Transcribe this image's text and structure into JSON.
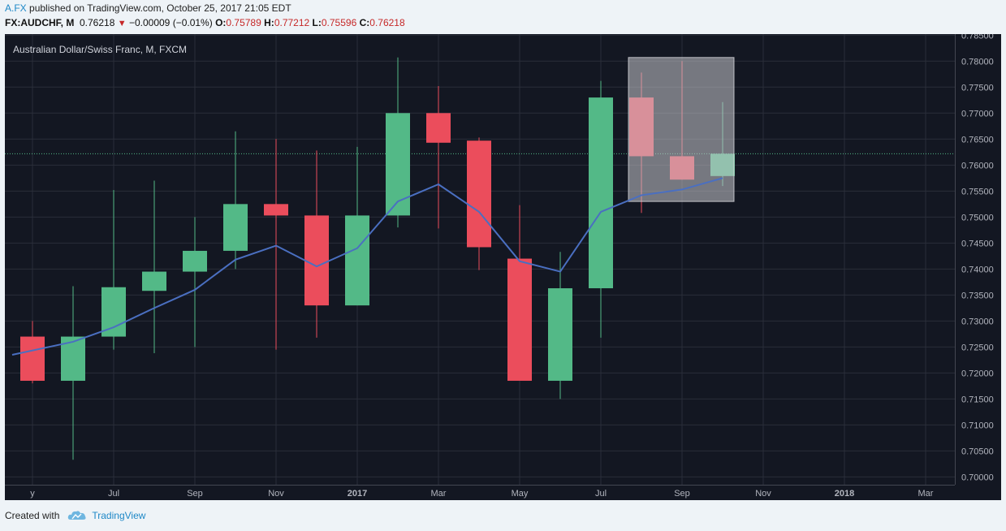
{
  "header": {
    "user": "A.FX",
    "published": "published on TradingView.com, October 25, 2017 21:05 EDT",
    "symbol": "FX:AUDCHF, M",
    "last": "0.76218",
    "change": "−0.00009 (−0.01%)",
    "o_label": "O:",
    "o_value": "0.75789",
    "h_label": "H:",
    "h_value": "0.77212",
    "l_label": "L:",
    "l_value": "0.75596",
    "c_label": "C:",
    "c_value": "0.76218",
    "down_arrow_icon": "triangle-down-icon"
  },
  "footer": {
    "created_with": "Created with",
    "brand": "TradingView",
    "logo_icon": "tradingview-cloud-icon"
  },
  "colors": {
    "background": "#131722",
    "up": "#53b987",
    "down": "#eb4d5c",
    "ma": "#4a6fc1",
    "grid": "#2a2e39",
    "axis_text": "#b2b5be",
    "price_line": "#53b987"
  },
  "chart_data": {
    "type": "candlestick",
    "title": "Australian Dollar/Swiss Franc, M, FXCM",
    "xlabel": "",
    "ylabel": "",
    "ylim": [
      0.6985,
      0.7852
    ],
    "grid": true,
    "current_price": 0.76218,
    "x_labels": [
      {
        "text": "y",
        "t": 0
      },
      {
        "text": "Jul",
        "t": 2
      },
      {
        "text": "Sep",
        "t": 4
      },
      {
        "text": "Nov",
        "t": 6
      },
      {
        "text": "2017",
        "t": 8
      },
      {
        "text": "Mar",
        "t": 10
      },
      {
        "text": "May",
        "t": 12
      },
      {
        "text": "Jul",
        "t": 14
      },
      {
        "text": "Sep",
        "t": 16
      },
      {
        "text": "Nov",
        "t": 18
      },
      {
        "text": "2018",
        "t": 20
      },
      {
        "text": "Mar",
        "t": 22
      }
    ],
    "y_ticks": [
      "0.78500",
      "0.78000",
      "0.77500",
      "0.77000",
      "0.76500",
      "0.76000",
      "0.75500",
      "0.75000",
      "0.74500",
      "0.74000",
      "0.73500",
      "0.73000",
      "0.72500",
      "0.72000",
      "0.71500",
      "0.71000",
      "0.70500",
      "0.70000"
    ],
    "candles": [
      {
        "t": 0,
        "o": 0.727,
        "h": 0.73,
        "l": 0.718,
        "c": 0.7185
      },
      {
        "t": 1,
        "o": 0.7185,
        "h": 0.7367,
        "l": 0.7033,
        "c": 0.727
      },
      {
        "t": 2,
        "o": 0.727,
        "h": 0.7552,
        "l": 0.7245,
        "c": 0.7365
      },
      {
        "t": 3,
        "o": 0.7358,
        "h": 0.757,
        "l": 0.7238,
        "c": 0.7395
      },
      {
        "t": 4,
        "o": 0.7395,
        "h": 0.75,
        "l": 0.725,
        "c": 0.7435
      },
      {
        "t": 5,
        "o": 0.7435,
        "h": 0.7665,
        "l": 0.74,
        "c": 0.7525
      },
      {
        "t": 6,
        "o": 0.7525,
        "h": 0.765,
        "l": 0.7245,
        "c": 0.7503
      },
      {
        "t": 7,
        "o": 0.7503,
        "h": 0.7628,
        "l": 0.7268,
        "c": 0.733
      },
      {
        "t": 8,
        "o": 0.733,
        "h": 0.7635,
        "l": 0.733,
        "c": 0.7503
      },
      {
        "t": 9,
        "o": 0.7503,
        "h": 0.7807,
        "l": 0.748,
        "c": 0.77
      },
      {
        "t": 10,
        "o": 0.77,
        "h": 0.7752,
        "l": 0.7478,
        "c": 0.7643
      },
      {
        "t": 11,
        "o": 0.7647,
        "h": 0.7653,
        "l": 0.7398,
        "c": 0.7442
      },
      {
        "t": 12,
        "o": 0.742,
        "h": 0.7523,
        "l": 0.7185,
        "c": 0.7185
      },
      {
        "t": 13,
        "o": 0.7185,
        "h": 0.7433,
        "l": 0.715,
        "c": 0.7363
      },
      {
        "t": 14,
        "o": 0.7363,
        "h": 0.7762,
        "l": 0.7268,
        "c": 0.773
      },
      {
        "t": 15,
        "o": 0.773,
        "h": 0.7778,
        "l": 0.7508,
        "c": 0.7617,
        "faded": true
      },
      {
        "t": 16,
        "o": 0.7617,
        "h": 0.78,
        "l": 0.7572,
        "c": 0.7572,
        "faded": true
      },
      {
        "t": 17,
        "o": 0.75789,
        "h": 0.77212,
        "l": 0.75596,
        "c": 0.76218,
        "faded": true
      }
    ],
    "ma": [
      {
        "t": -0.5,
        "v": 0.7235
      },
      {
        "t": 1,
        "v": 0.726
      },
      {
        "t": 2,
        "v": 0.7288
      },
      {
        "t": 3,
        "v": 0.7325
      },
      {
        "t": 4,
        "v": 0.736
      },
      {
        "t": 5,
        "v": 0.7418
      },
      {
        "t": 6,
        "v": 0.7445
      },
      {
        "t": 7,
        "v": 0.7405
      },
      {
        "t": 8,
        "v": 0.744
      },
      {
        "t": 9,
        "v": 0.753
      },
      {
        "t": 10,
        "v": 0.7563
      },
      {
        "t": 11,
        "v": 0.751
      },
      {
        "t": 12,
        "v": 0.7415
      },
      {
        "t": 13,
        "v": 0.7395
      },
      {
        "t": 14,
        "v": 0.751
      },
      {
        "t": 15,
        "v": 0.7542
      },
      {
        "t": 16,
        "v": 0.7553
      },
      {
        "t": 17,
        "v": 0.7575
      }
    ],
    "highlight_box": {
      "t_start": 14.98,
      "t_end": 16.98,
      "y_top": 0.7807,
      "y_bottom": 0.753
    }
  }
}
